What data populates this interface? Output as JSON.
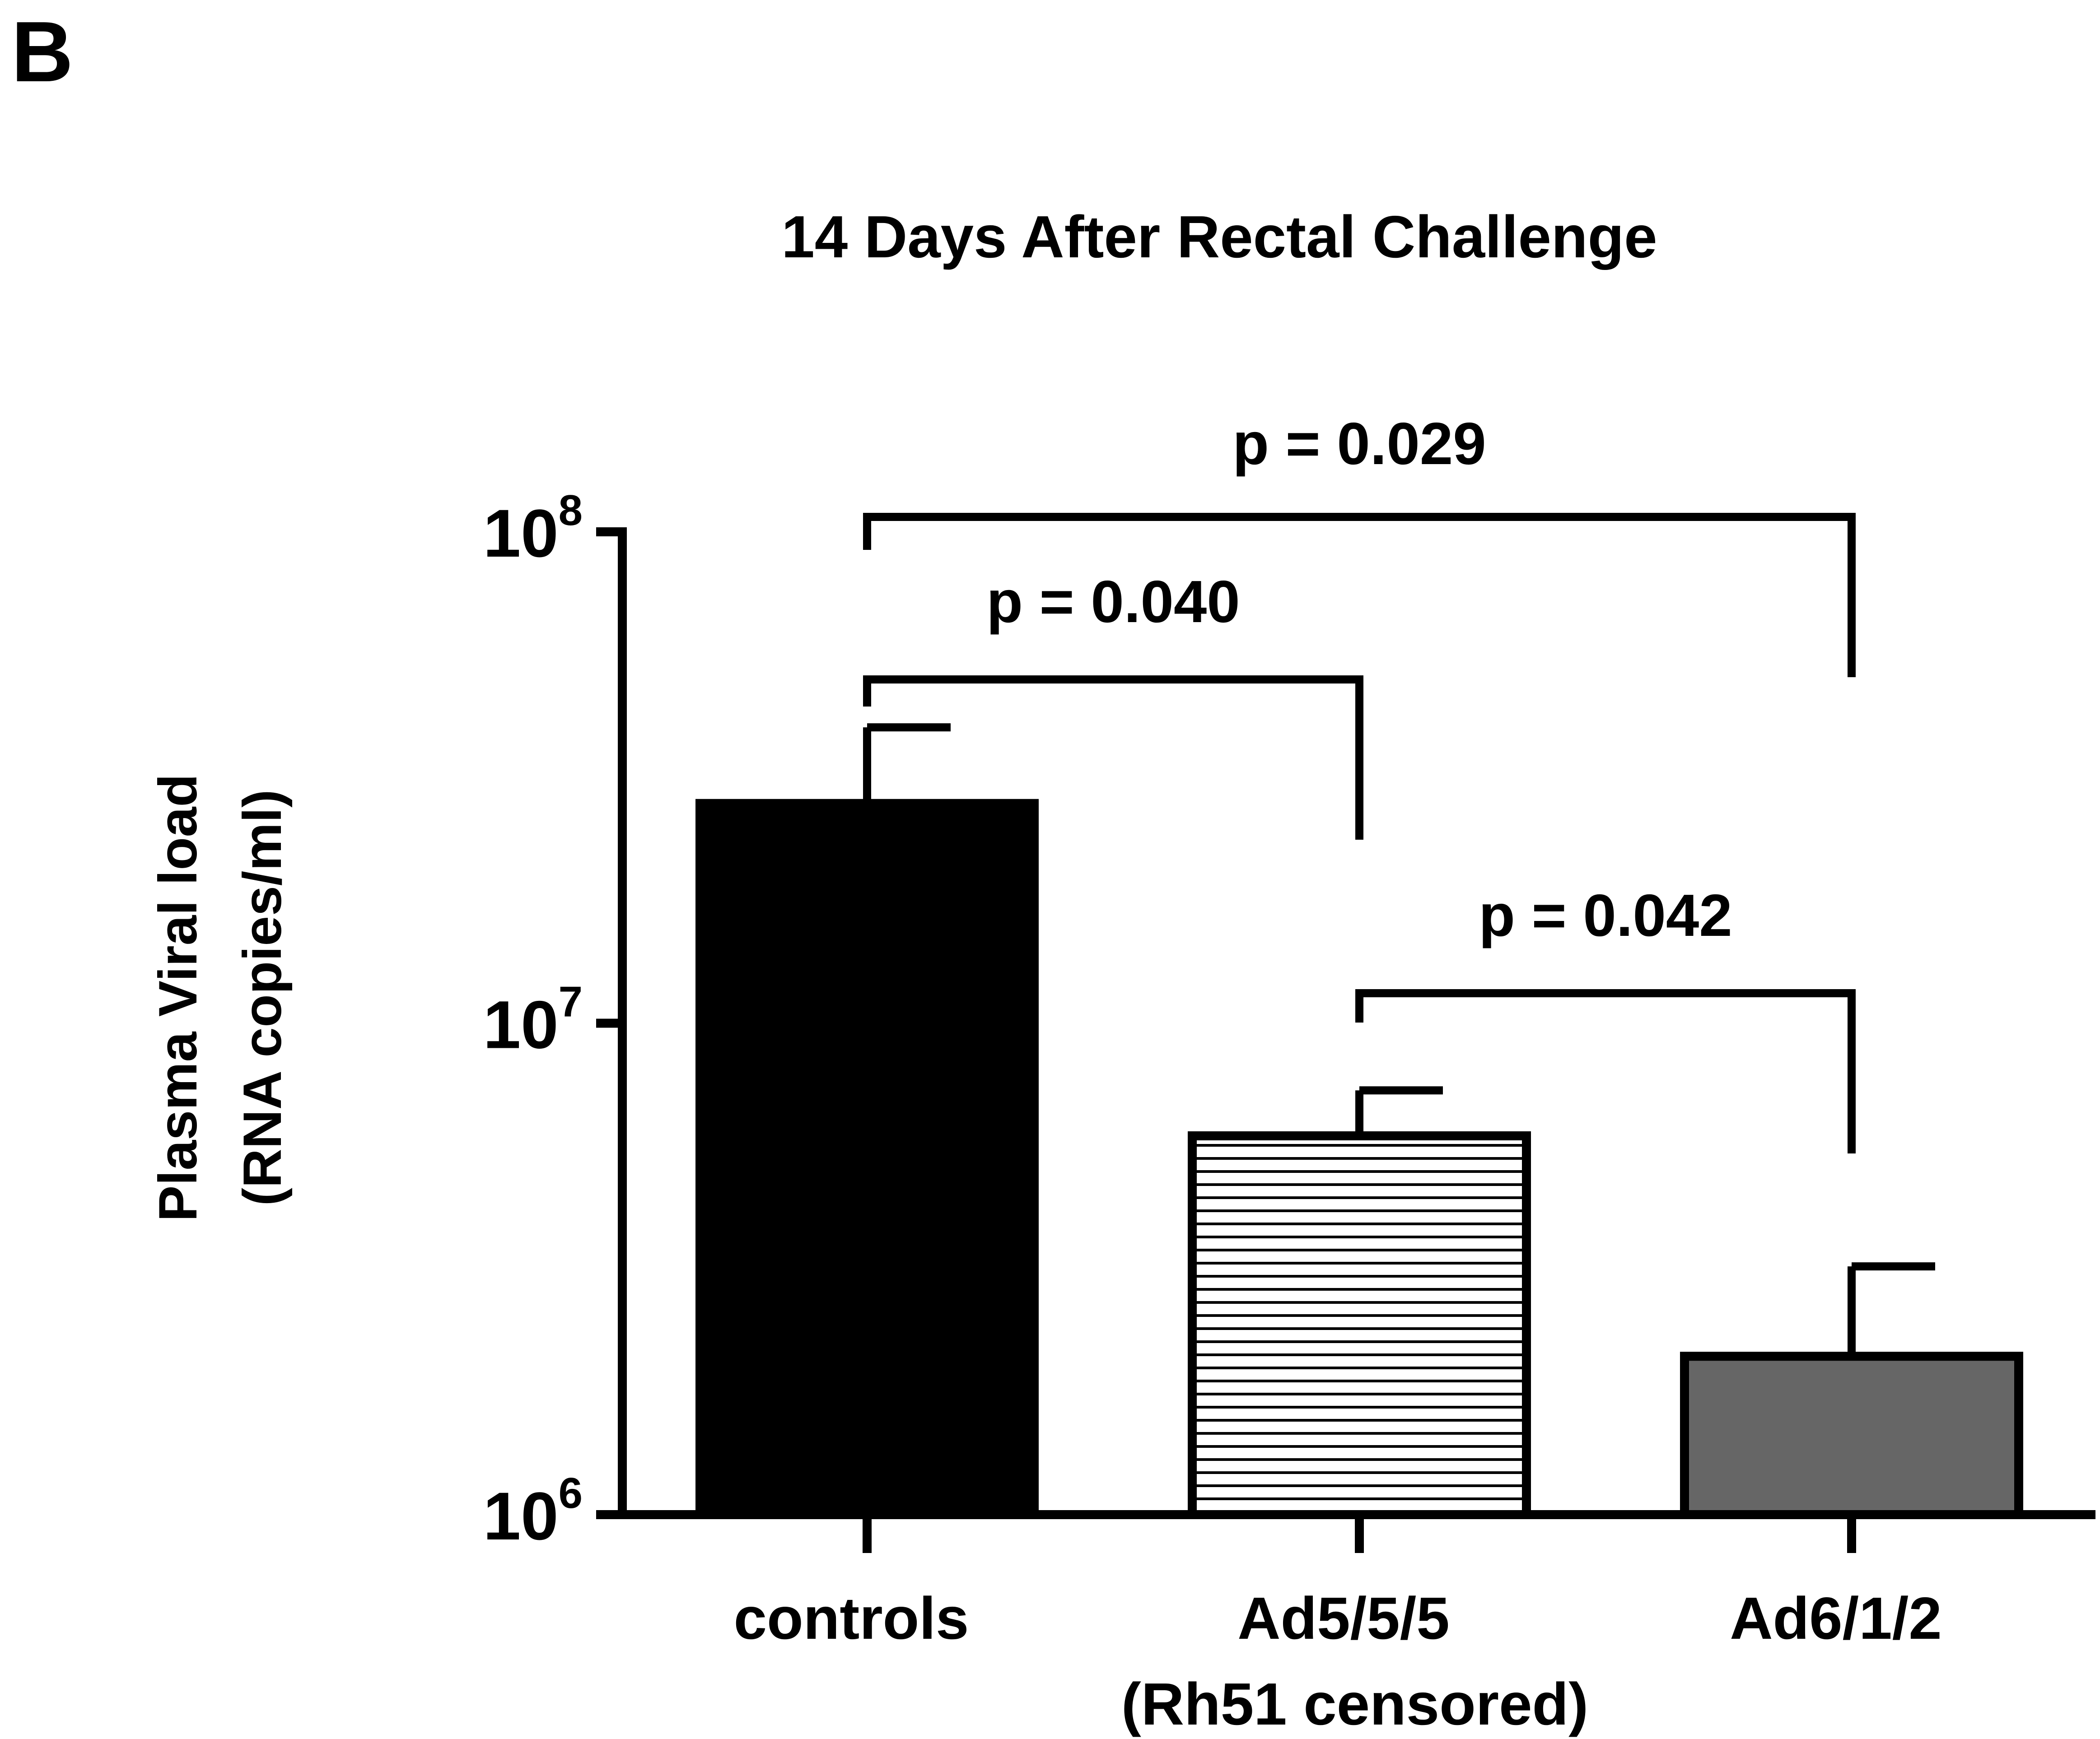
{
  "panel_label": "B",
  "chart_data": {
    "type": "bar",
    "title": "14 Days After Rectal Challenge",
    "ylabel_lines": [
      "Plasma Viral load",
      "(RNA copies/ml)"
    ],
    "xlabel": "",
    "yscale": "log",
    "ylim": [
      1000000,
      100000000
    ],
    "yticks": [
      {
        "value": 1000000,
        "base": "10",
        "exp": "6"
      },
      {
        "value": 10000000,
        "base": "10",
        "exp": "7"
      },
      {
        "value": 100000000,
        "base": "10",
        "exp": "8"
      }
    ],
    "categories": [
      {
        "label": "controls",
        "sublabel": "",
        "value": 28000000,
        "error_upper": 40000000,
        "fill": "solid",
        "color": "#000000"
      },
      {
        "label": "Ad5/5/5",
        "sublabel": "(Rh51 censored)",
        "value": 5900000,
        "error_upper": 7300000,
        "fill": "horizontal-stripes",
        "color": "#ffffff"
      },
      {
        "label": "Ad6/1/2",
        "sublabel": "",
        "value": 2100000,
        "error_upper": 3200000,
        "fill": "solid",
        "color": "#666666"
      }
    ],
    "comparisons": [
      {
        "from": 0,
        "to": 2,
        "label": "p = 0.029"
      },
      {
        "from": 0,
        "to": 1,
        "label": "p = 0.040"
      },
      {
        "from": 1,
        "to": 2,
        "label": "p = 0.042"
      }
    ]
  }
}
